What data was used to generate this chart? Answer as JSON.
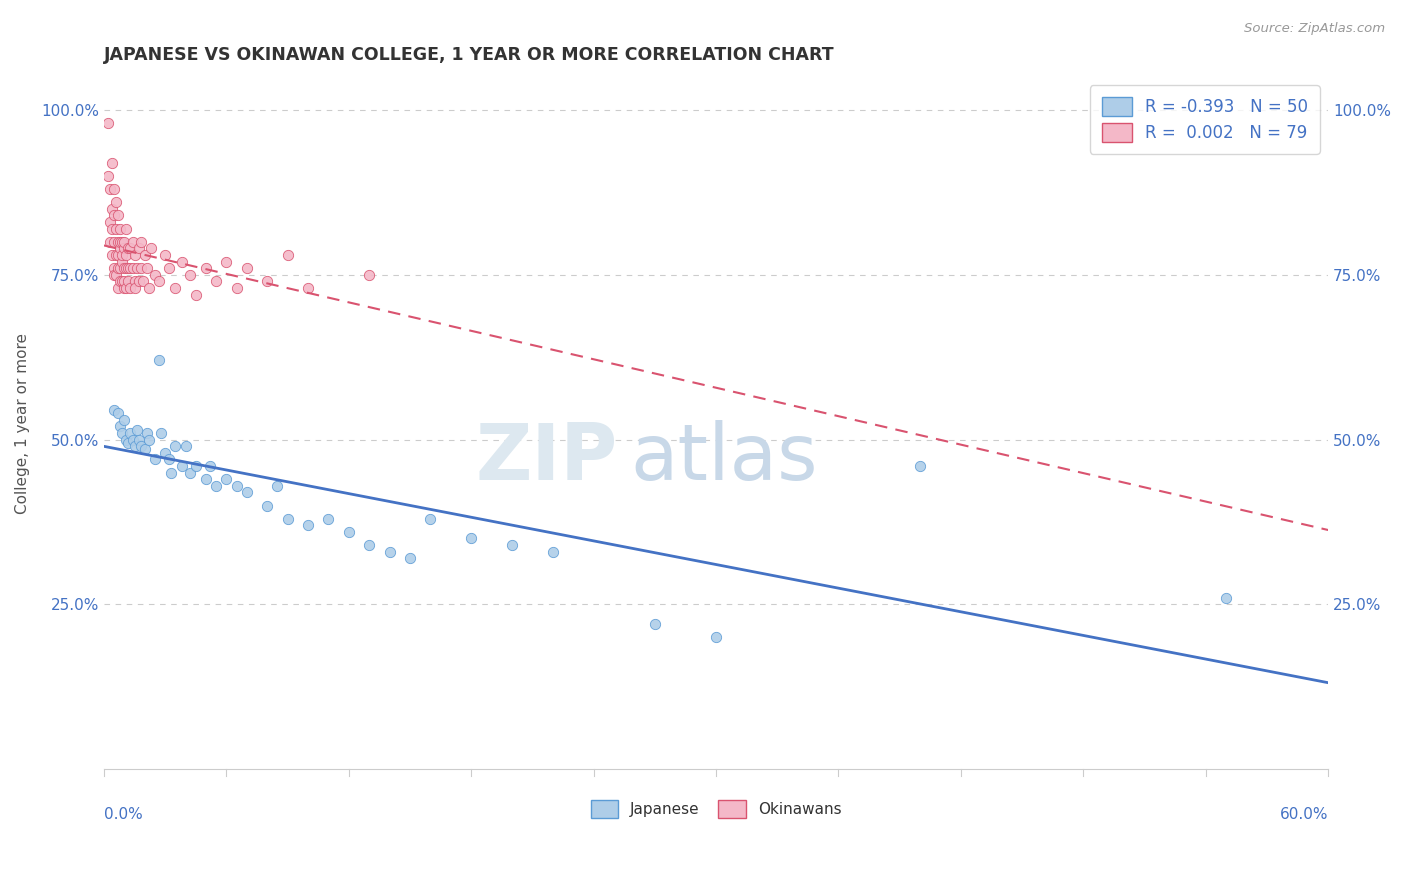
{
  "title": "JAPANESE VS OKINAWAN COLLEGE, 1 YEAR OR MORE CORRELATION CHART",
  "source": "Source: ZipAtlas.com",
  "ylabel": "College, 1 year or more",
  "watermark_zip": "ZIP",
  "watermark_atlas": "atlas",
  "legend_japanese": {
    "R": -0.393,
    "N": 50,
    "color": "#aecde8",
    "edge_color": "#5b9bd5"
  },
  "legend_okinawan": {
    "R": 0.002,
    "N": 79,
    "color": "#f4b8c8",
    "edge_color": "#d9536f"
  },
  "japanese_line_color": "#4472c4",
  "okinawan_line_color": "#d9536f",
  "background_color": "#ffffff",
  "grid_color": "#cccccc",
  "title_color": "#333333",
  "tick_color": "#4472c4",
  "japanese_x": [
    0.005,
    0.007,
    0.008,
    0.009,
    0.01,
    0.011,
    0.012,
    0.013,
    0.014,
    0.015,
    0.016,
    0.017,
    0.018,
    0.02,
    0.021,
    0.022,
    0.025,
    0.027,
    0.028,
    0.03,
    0.032,
    0.033,
    0.035,
    0.038,
    0.04,
    0.042,
    0.045,
    0.05,
    0.052,
    0.055,
    0.06,
    0.065,
    0.07,
    0.08,
    0.085,
    0.09,
    0.1,
    0.11,
    0.12,
    0.13,
    0.14,
    0.15,
    0.16,
    0.18,
    0.2,
    0.22,
    0.27,
    0.3,
    0.4,
    0.55
  ],
  "japanese_y": [
    0.545,
    0.54,
    0.52,
    0.51,
    0.53,
    0.5,
    0.495,
    0.51,
    0.5,
    0.49,
    0.515,
    0.5,
    0.49,
    0.485,
    0.51,
    0.5,
    0.47,
    0.62,
    0.51,
    0.48,
    0.47,
    0.45,
    0.49,
    0.46,
    0.49,
    0.45,
    0.46,
    0.44,
    0.46,
    0.43,
    0.44,
    0.43,
    0.42,
    0.4,
    0.43,
    0.38,
    0.37,
    0.38,
    0.36,
    0.34,
    0.33,
    0.32,
    0.38,
    0.35,
    0.34,
    0.33,
    0.22,
    0.2,
    0.46,
    0.26
  ],
  "okinawan_x": [
    0.002,
    0.002,
    0.003,
    0.003,
    0.003,
    0.004,
    0.004,
    0.004,
    0.004,
    0.005,
    0.005,
    0.005,
    0.005,
    0.005,
    0.006,
    0.006,
    0.006,
    0.006,
    0.007,
    0.007,
    0.007,
    0.007,
    0.007,
    0.008,
    0.008,
    0.008,
    0.008,
    0.008,
    0.009,
    0.009,
    0.009,
    0.009,
    0.01,
    0.01,
    0.01,
    0.01,
    0.01,
    0.011,
    0.011,
    0.011,
    0.011,
    0.012,
    0.012,
    0.012,
    0.013,
    0.013,
    0.013,
    0.014,
    0.014,
    0.015,
    0.015,
    0.015,
    0.016,
    0.017,
    0.017,
    0.018,
    0.018,
    0.019,
    0.02,
    0.021,
    0.022,
    0.023,
    0.025,
    0.027,
    0.03,
    0.032,
    0.035,
    0.038,
    0.042,
    0.045,
    0.05,
    0.055,
    0.06,
    0.065,
    0.07,
    0.08,
    0.09,
    0.1,
    0.13
  ],
  "okinawan_y": [
    0.98,
    0.9,
    0.88,
    0.83,
    0.8,
    0.82,
    0.78,
    0.85,
    0.92,
    0.76,
    0.8,
    0.75,
    0.88,
    0.84,
    0.78,
    0.82,
    0.75,
    0.86,
    0.78,
    0.8,
    0.76,
    0.73,
    0.84,
    0.79,
    0.76,
    0.82,
    0.74,
    0.8,
    0.77,
    0.74,
    0.78,
    0.8,
    0.76,
    0.73,
    0.79,
    0.74,
    0.8,
    0.76,
    0.73,
    0.78,
    0.82,
    0.76,
    0.79,
    0.74,
    0.76,
    0.73,
    0.79,
    0.76,
    0.8,
    0.74,
    0.78,
    0.73,
    0.76,
    0.79,
    0.74,
    0.76,
    0.8,
    0.74,
    0.78,
    0.76,
    0.73,
    0.79,
    0.75,
    0.74,
    0.78,
    0.76,
    0.73,
    0.77,
    0.75,
    0.72,
    0.76,
    0.74,
    0.77,
    0.73,
    0.76,
    0.74,
    0.78,
    0.73,
    0.75
  ],
  "xlim": [
    0.0,
    0.6
  ],
  "ylim": [
    0.0,
    1.05
  ],
  "ytick_positions": [
    0.25,
    0.5,
    0.75,
    1.0
  ],
  "ytick_labels": [
    "25.0%",
    "50.0%",
    "75.0%",
    "100.0%"
  ]
}
